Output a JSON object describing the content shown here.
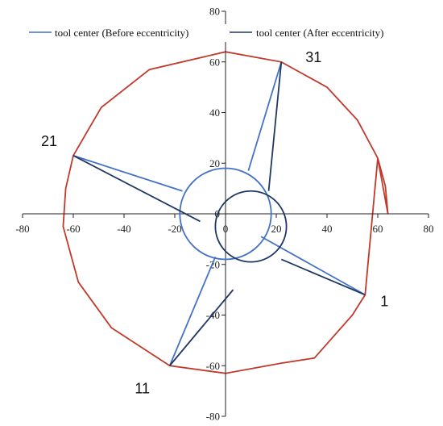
{
  "chart_data": {
    "type": "scatter",
    "xlim": [
      -80,
      80
    ],
    "ylim": [
      -80,
      80
    ],
    "x_ticks": [
      -80,
      -60,
      -40,
      -20,
      0,
      20,
      40,
      60,
      80
    ],
    "y_ticks": [
      -80,
      -60,
      -40,
      -20,
      0,
      20,
      40,
      60,
      80
    ],
    "grid": false,
    "legend_placement": "top",
    "colors": {
      "before": "#4472c4",
      "after": "#1f3864",
      "boundary": "#c0392b",
      "axis": "#222222"
    },
    "series": [
      {
        "name": "tool center (Before eccentricity)",
        "circle": {
          "center": [
            0,
            0
          ],
          "radius": 18
        },
        "lines": [
          [
            [
              55,
              -32
            ],
            [
              14,
              -9
            ]
          ],
          [
            [
              -22,
              -60
            ],
            [
              -4,
              -17
            ]
          ],
          [
            [
              -60,
              23
            ],
            [
              -17,
              9
            ]
          ],
          [
            [
              22,
              60
            ],
            [
              9,
              17
            ]
          ]
        ]
      },
      {
        "name": "tool center (After eccentricity)",
        "circle": {
          "center": [
            10,
            -5
          ],
          "radius": 14
        },
        "lines": [
          [
            [
              55,
              -32
            ],
            [
              22,
              -18
            ]
          ],
          [
            [
              -22,
              -60
            ],
            [
              3,
              -30
            ]
          ],
          [
            [
              -60,
              23
            ],
            [
              -10,
              -3
            ]
          ],
          [
            [
              22,
              60
            ],
            [
              17,
              9
            ]
          ]
        ]
      }
    ],
    "boundary": {
      "name": "",
      "points": [
        [
          64,
          0
        ],
        [
          63,
          11
        ],
        [
          60,
          22
        ],
        [
          55,
          -32
        ],
        [
          50,
          -40
        ],
        [
          35,
          -57
        ],
        [
          22,
          -59
        ],
        [
          0,
          -63
        ],
        [
          -22,
          -60
        ],
        [
          -45,
          -45
        ],
        [
          -58,
          -27
        ],
        [
          -64,
          -5
        ],
        [
          -63,
          10
        ],
        [
          -60,
          23
        ],
        [
          -49,
          42
        ],
        [
          -30,
          57
        ],
        [
          0,
          64
        ],
        [
          22,
          60
        ],
        [
          40,
          50
        ],
        [
          52,
          37
        ],
        [
          60,
          22
        ]
      ]
    },
    "point_labels": [
      {
        "text": "1",
        "x": 55,
        "y": -32
      },
      {
        "text": "11",
        "x": -22,
        "y": -60
      },
      {
        "text": "21",
        "x": -60,
        "y": 23
      },
      {
        "text": "31",
        "x": 22,
        "y": 60
      }
    ]
  }
}
